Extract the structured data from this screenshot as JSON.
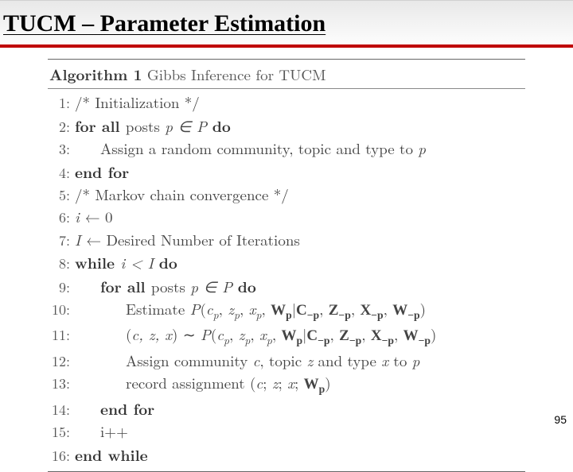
{
  "header": {
    "title": "TUCM – Parameter Estimation",
    "title_color": "#000000",
    "band_gradient_top": "#e8e8e8",
    "band_gradient_bottom": "#fdfdfd",
    "rule_color": "#c00000"
  },
  "algorithm": {
    "label": "Algorithm 1",
    "desc": "Gibbs Inference for TUCM",
    "text_color": "#444444",
    "rule_color": "#666666",
    "lines": {
      "l1_num": "1:",
      "l1_text": "/* Initialization */",
      "l2_num": "2:",
      "l2_a": "for all ",
      "l2_b": "posts ",
      "l2_c": "p ∈ P ",
      "l2_d": "do",
      "l3_num": "3:",
      "l3_text": "Assign a random community, topic and type to ",
      "l3_p": "p",
      "l4_num": "4:",
      "l4_text": "end for",
      "l5_num": "5:",
      "l5_text": "/* Markov chain convergence */",
      "l6_num": "6:",
      "l6_a": "i ",
      "l6_b": "← 0",
      "l7_num": "7:",
      "l7_a": "I ",
      "l7_b": "← Desired Number of Iterations",
      "l8_num": "8:",
      "l8_a": "while ",
      "l8_b": "i < I ",
      "l8_c": "do",
      "l9_num": "9:",
      "l9_a": "for all ",
      "l9_b": "posts ",
      "l9_c": "p ∈ P ",
      "l9_d": "do",
      "l10_num": "10:",
      "l11_num": "11:",
      "l12_num": "12:",
      "l12_a": "Assign community ",
      "l12_b": "c",
      "l12_c": ", topic ",
      "l12_d": "z",
      "l12_e": " and type ",
      "l12_f": "x",
      "l12_g": " to ",
      "l12_h": "p",
      "l13_num": "13:",
      "l14_num": "14:",
      "l14_text": "end for",
      "l15_num": "15:",
      "l15_text": "i++",
      "l16_num": "16:",
      "l16_text": "end while"
    }
  },
  "page_number": "95"
}
